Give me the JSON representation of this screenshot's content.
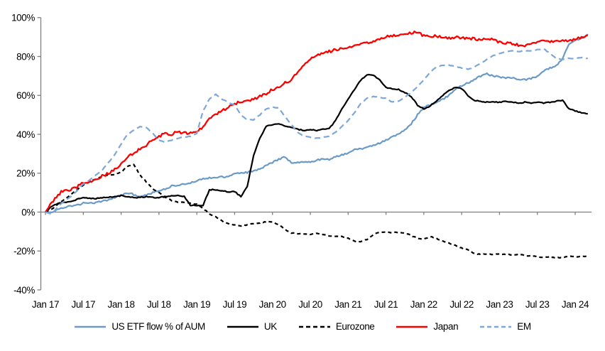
{
  "chart_data": {
    "type": "line",
    "title": "",
    "x_start": "Jan 2017",
    "x_end": "Mar 2024",
    "x_unit": "month",
    "x_tick_months": [
      0,
      6,
      12,
      18,
      24,
      30,
      36,
      42,
      48,
      54,
      60,
      66,
      72,
      78,
      84
    ],
    "x_tick_labels": [
      "Jan 17",
      "Jul 17",
      "Jan 18",
      "Jul 18",
      "Jan 19",
      "Jul 19",
      "Jan 20",
      "Jul 20",
      "Jan 21",
      "Jul 21",
      "Jan 22",
      "Jul 22",
      "Jan 23",
      "Jul 23",
      "Jan 24"
    ],
    "y_ticks": [
      100,
      80,
      60,
      40,
      20,
      0,
      -20,
      -40
    ],
    "y_tick_labels": [
      "100%",
      "80%",
      "60%",
      "40%",
      "20%",
      "0%",
      "-20%",
      "-40%"
    ],
    "ylim": [
      -40,
      100
    ],
    "grid": false,
    "legend_position": "bottom",
    "axis_color": "#808080",
    "series": [
      {
        "name": "US ETF flow % of AUM",
        "color": "#6a9ac8",
        "dash": "solid",
        "dash_pattern": "",
        "width": 2.2,
        "noise": 0.45,
        "values": [
          0,
          -0.5,
          1.5,
          2.5,
          3,
          3.5,
          4.5,
          4.5,
          5,
          5.5,
          6.5,
          7.5,
          8.5,
          10,
          9,
          8,
          9,
          10,
          11,
          12,
          13.5,
          14,
          14.5,
          15,
          16,
          17,
          17.5,
          18,
          18,
          18.5,
          19.5,
          20,
          20.5,
          21,
          22,
          24,
          25.5,
          27,
          28.5,
          25.5,
          25.5,
          26,
          26,
          26.5,
          27.5,
          27,
          28.5,
          29.5,
          30.5,
          32,
          32.5,
          33.5,
          34.5,
          35.5,
          37,
          38.5,
          40,
          42,
          45.5,
          50,
          54,
          55,
          56.5,
          58,
          60,
          63,
          65,
          66.5,
          68,
          70,
          71,
          70,
          69.5,
          69,
          69,
          68.5,
          68,
          68.5,
          70,
          72.5,
          74,
          75.5,
          79,
          86,
          88.5,
          89,
          91.5
        ]
      },
      {
        "name": "UK",
        "color": "#000000",
        "dash": "solid",
        "dash_pattern": "",
        "width": 2.2,
        "noise": 0.25,
        "values": [
          0,
          3,
          4.5,
          5,
          5.5,
          6.5,
          7.5,
          7,
          7,
          7.5,
          7.5,
          8,
          8.5,
          8,
          7.5,
          7.5,
          8,
          7.5,
          7.5,
          8,
          8.5,
          8.5,
          8,
          3.5,
          3.5,
          3.5,
          11.5,
          11.5,
          11,
          10.5,
          10.5,
          8,
          13,
          29,
          38,
          44,
          45,
          45.5,
          44,
          43.5,
          42.5,
          42,
          42.5,
          42,
          42.5,
          43,
          47,
          53,
          58,
          63,
          68,
          70.5,
          70.5,
          68,
          64,
          63.5,
          63,
          61.5,
          59.5,
          55,
          53,
          54.5,
          57,
          60,
          62.5,
          64,
          63.5,
          60,
          57.5,
          57,
          56.5,
          56.5,
          56.5,
          57,
          56.5,
          56,
          56.5,
          56,
          56.5,
          56,
          56.5,
          57,
          57.5,
          53,
          52,
          51,
          50.5
        ]
      },
      {
        "name": "Eurozone",
        "color": "#000000",
        "dash": "dashed",
        "dash_pattern": "5 4",
        "width": 2.2,
        "noise": 0.2,
        "values": [
          0,
          1.5,
          4,
          6.5,
          9,
          11.5,
          14,
          15.5,
          17,
          18.5,
          19,
          19.5,
          20.5,
          23.5,
          24.5,
          19,
          15.5,
          12,
          10,
          7.5,
          6,
          5,
          5,
          4.5,
          4,
          2,
          -1,
          -2.5,
          -4.5,
          -6,
          -6.5,
          -7,
          -6.5,
          -6,
          -5.5,
          -5,
          -5,
          -6.5,
          -9,
          -10.8,
          -11,
          -11.3,
          -11.5,
          -11,
          -11.5,
          -12.2,
          -12.4,
          -12.6,
          -13.5,
          -15,
          -15.3,
          -14,
          -11.5,
          -10.4,
          -10.3,
          -10.5,
          -10.4,
          -10.8,
          -12,
          -13.5,
          -14,
          -12.6,
          -13.5,
          -15,
          -16,
          -17,
          -18.5,
          -19.5,
          -21.4,
          -21.7,
          -21.5,
          -21.8,
          -21.5,
          -21.8,
          -22,
          -21.8,
          -22.3,
          -22.5,
          -23,
          -23.2,
          -23,
          -23.5,
          -23.3,
          -22.8,
          -23,
          -22.8,
          -22.8
        ]
      },
      {
        "name": "Japan",
        "color": "#ff0000",
        "dash": "solid",
        "dash_pattern": "",
        "width": 2.3,
        "noise": 0.7,
        "values": [
          0,
          5,
          9,
          11.5,
          11.5,
          13,
          15,
          15.5,
          17,
          18.5,
          20,
          22,
          24.5,
          28,
          30.5,
          32.5,
          34.5,
          37,
          39,
          40.5,
          40,
          41.5,
          40.5,
          41,
          41.5,
          44,
          48,
          50,
          52,
          54,
          55.5,
          57,
          57.5,
          58,
          59.5,
          61,
          63,
          64.5,
          66.5,
          68,
          72,
          76,
          79,
          80.5,
          81.5,
          82.5,
          83.5,
          84,
          84.5,
          85.5,
          86.5,
          87,
          87.5,
          89,
          90,
          90.5,
          91,
          91.5,
          92,
          92.5,
          90.5,
          90,
          90.5,
          90,
          89.5,
          90,
          89.5,
          89.5,
          89,
          88.5,
          89,
          88.5,
          87.5,
          87,
          86.5,
          86,
          85.5,
          86.5,
          87.5,
          88,
          87.5,
          88.5,
          88,
          88.5,
          89,
          90,
          91
        ]
      },
      {
        "name": "EM",
        "color": "#7da7d8",
        "dash": "dashed",
        "dash_pattern": "8 5",
        "width": 2.2,
        "noise": 0.15,
        "values": [
          0,
          -1,
          3,
          5.5,
          8,
          11,
          14.5,
          16.5,
          19,
          21.5,
          25.5,
          29.5,
          35,
          40,
          42,
          44,
          43.5,
          40.5,
          37,
          36,
          37,
          38,
          38.5,
          39,
          40.5,
          52,
          58,
          60.5,
          58,
          56.5,
          55,
          50,
          47.5,
          47.5,
          50,
          53,
          54,
          53.5,
          49,
          45,
          41,
          39,
          38.5,
          38,
          38.5,
          39,
          41,
          44,
          47,
          51,
          56,
          58.5,
          59.5,
          59,
          58.5,
          56.5,
          57,
          59,
          61.5,
          64.5,
          68,
          72,
          74.5,
          75.5,
          75.5,
          75,
          74,
          73.5,
          74.5,
          76.5,
          78.5,
          80.5,
          81.5,
          82.5,
          83,
          82.5,
          83,
          83,
          83.5,
          84,
          81.5,
          79,
          78.5,
          79,
          79,
          79.5,
          79
        ]
      }
    ]
  }
}
